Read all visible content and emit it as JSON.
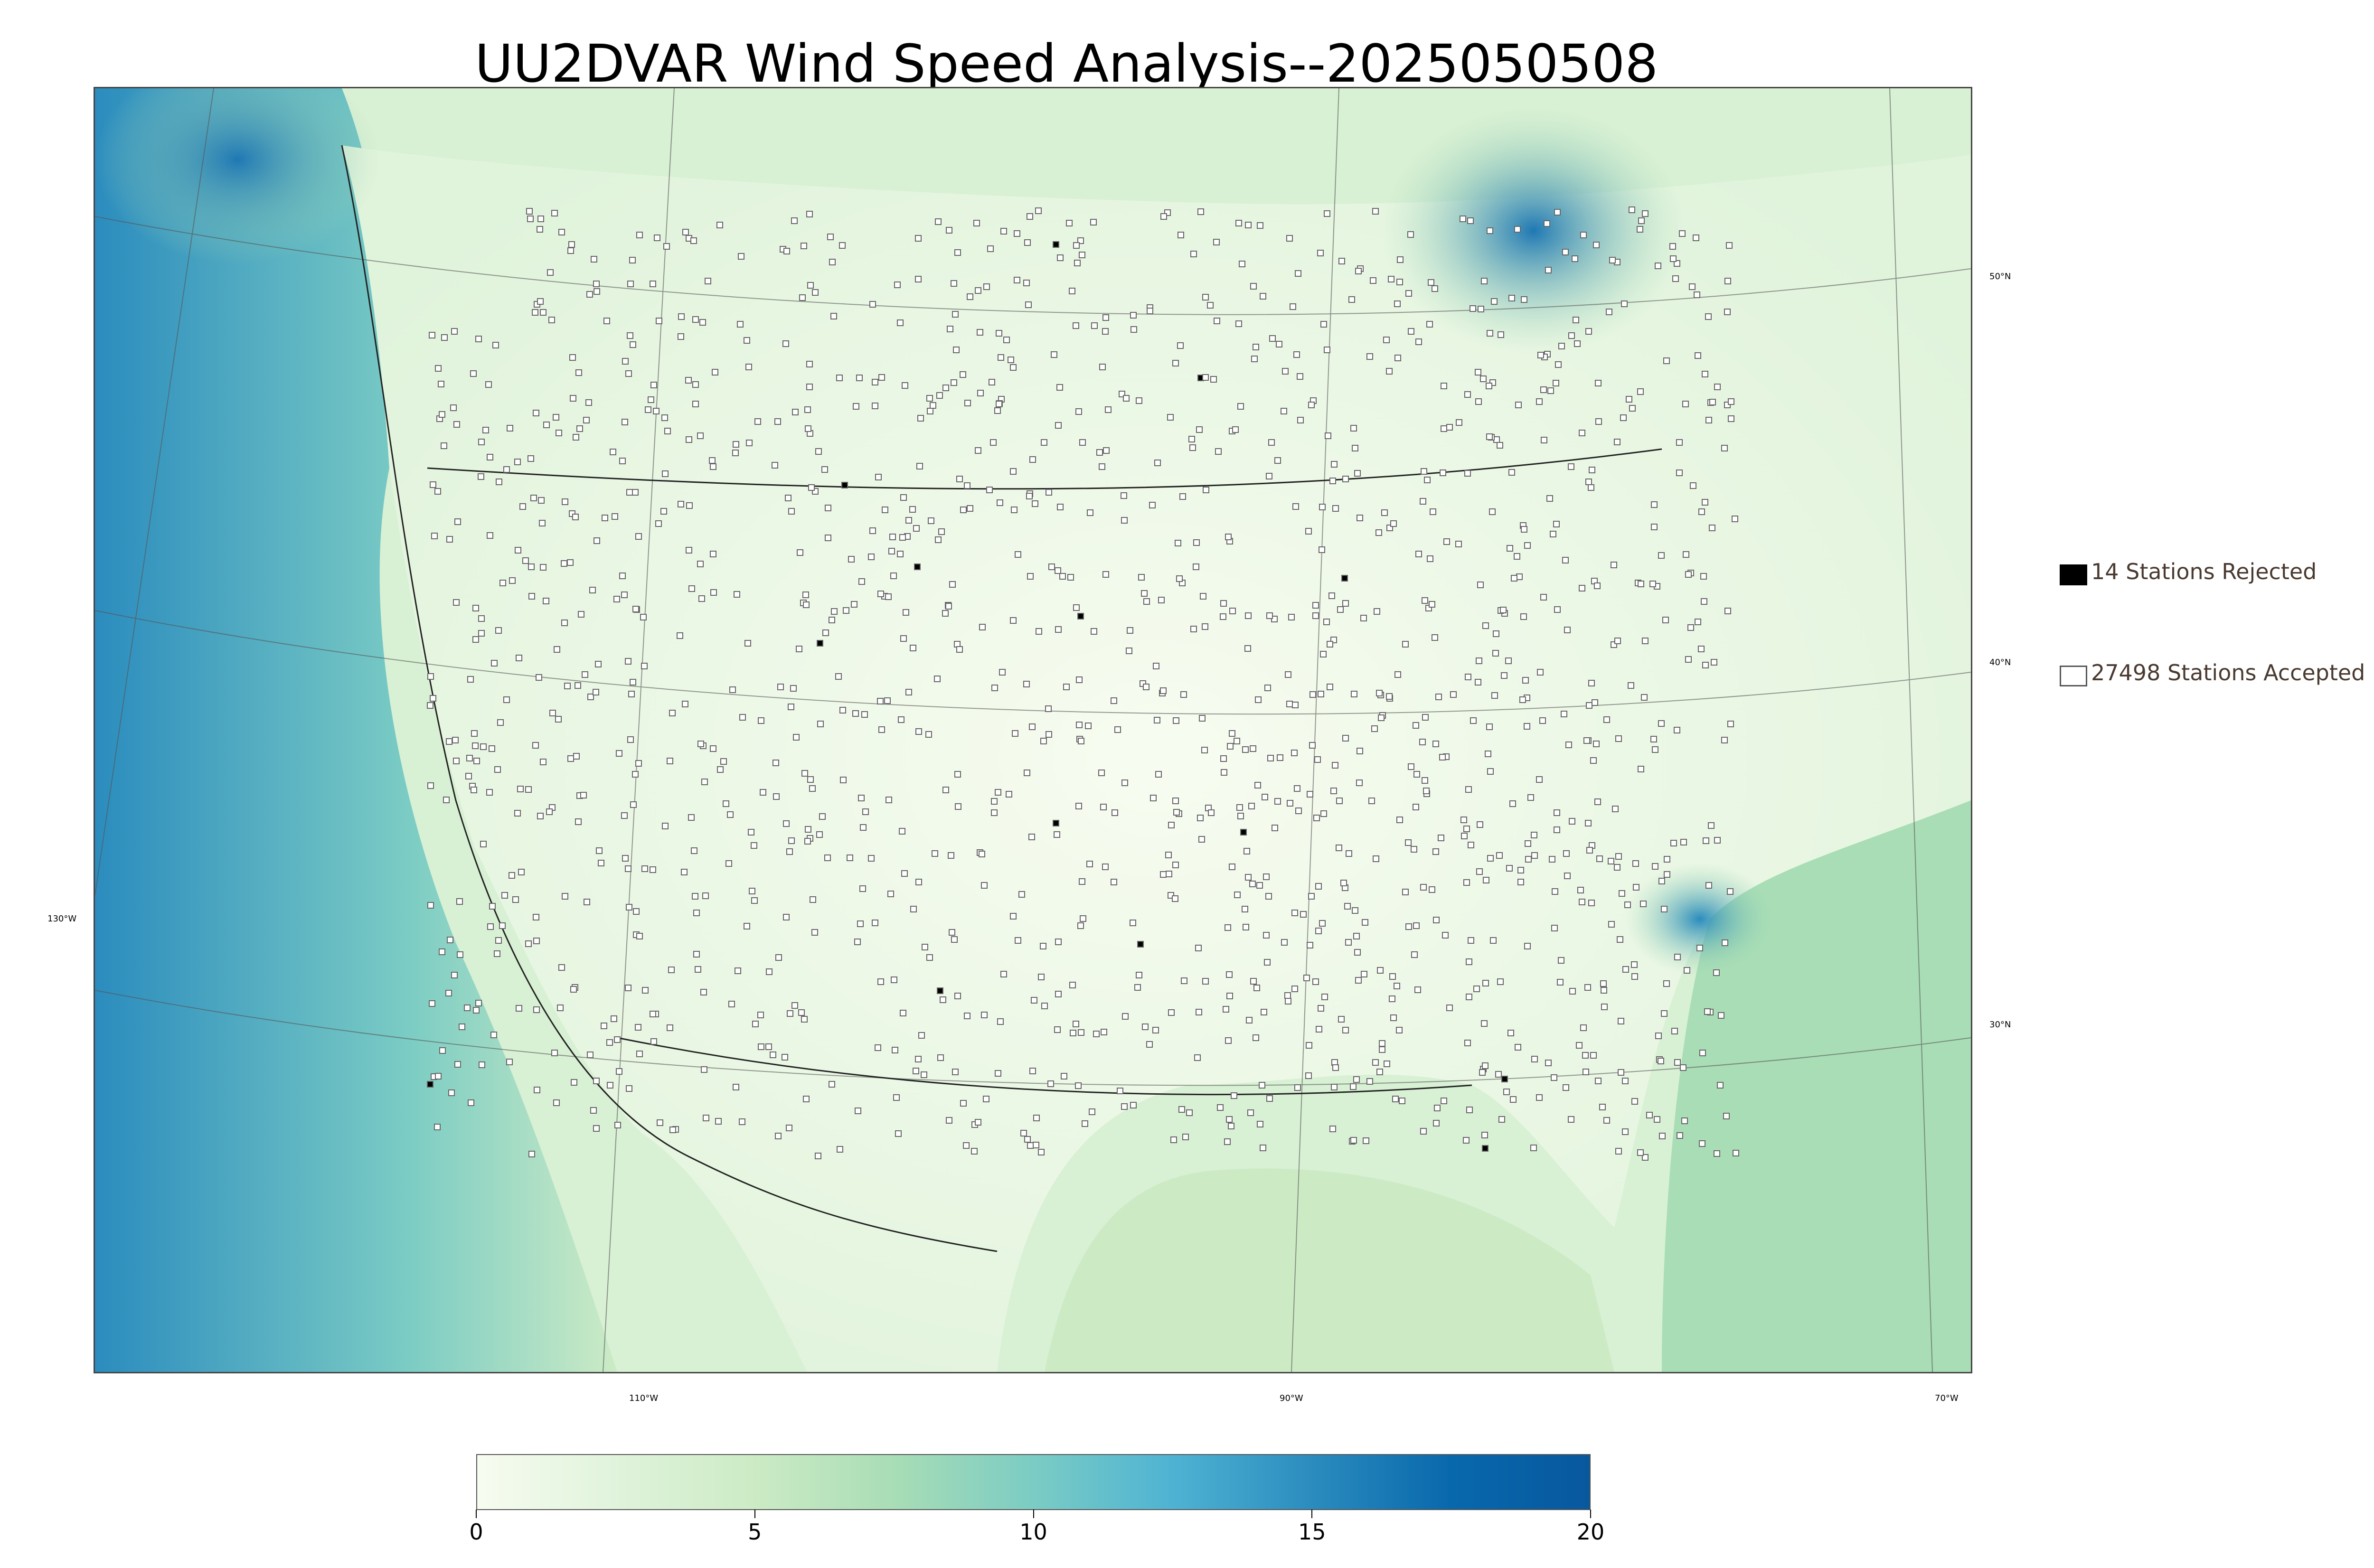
{
  "title": "UU2DVAR Wind Speed Analysis--2025050508",
  "map": {
    "lat_labels": [
      {
        "text": "50°N",
        "lat": 50
      },
      {
        "text": "40°N",
        "lat": 40
      },
      {
        "text": "30°N",
        "lat": 30
      }
    ],
    "lon_labels": [
      {
        "text": "130°W",
        "lon": -130
      },
      {
        "text": "110°W",
        "lon": -110
      },
      {
        "text": "90°W",
        "lon": -90
      },
      {
        "text": "70°W",
        "lon": -70
      }
    ],
    "field_colors": {
      "land_low": "#f2faf0",
      "land_mid": "#d8f0d4",
      "water_low": "#c6e9c4",
      "water_high": "#1f78b4"
    }
  },
  "legend": {
    "rejected": {
      "label": "14 Stations Rejected",
      "count": 14,
      "color": "#000000"
    },
    "accepted": {
      "label": "27498 Stations Accepted",
      "count": 27498,
      "color": "#ffffff"
    }
  },
  "colorbar": {
    "min": 0,
    "max": 20,
    "ticks": [
      "0",
      "5",
      "10",
      "15",
      "20"
    ],
    "colors": [
      "#f7fcf0",
      "#e0f3db",
      "#ccebc5",
      "#a8ddb5",
      "#7bccc4",
      "#4eb3d3",
      "#2b8cbe",
      "#0868ac",
      "#08589e"
    ]
  }
}
